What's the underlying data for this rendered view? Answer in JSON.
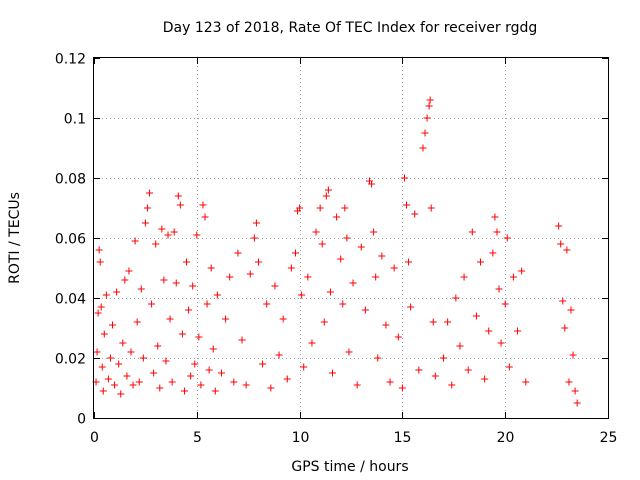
{
  "chart_data": {
    "type": "scatter",
    "title": "Day 123 of 2018, Rate Of TEC Index for receiver rgdg",
    "xlabel": "GPS time / hours",
    "ylabel": "ROTI / TECUs",
    "xlim": [
      0,
      25
    ],
    "ylim": [
      0,
      0.12
    ],
    "xticks": [
      0,
      5,
      10,
      15,
      20,
      25
    ],
    "yticks": [
      0,
      0.02,
      0.04,
      0.06,
      0.08,
      0.1,
      0.12
    ],
    "grid": true,
    "marker": "plus",
    "color": "#ff0000",
    "points": [
      [
        0.1,
        0.012
      ],
      [
        0.15,
        0.022
      ],
      [
        0.2,
        0.035
      ],
      [
        0.25,
        0.056
      ],
      [
        0.3,
        0.052
      ],
      [
        0.35,
        0.037
      ],
      [
        0.4,
        0.017
      ],
      [
        0.45,
        0.009
      ],
      [
        0.5,
        0.028
      ],
      [
        0.6,
        0.041
      ],
      [
        0.7,
        0.013
      ],
      [
        0.8,
        0.02
      ],
      [
        0.9,
        0.031
      ],
      [
        1.0,
        0.011
      ],
      [
        1.1,
        0.042
      ],
      [
        1.2,
        0.018
      ],
      [
        1.3,
        0.008
      ],
      [
        1.4,
        0.025
      ],
      [
        1.5,
        0.046
      ],
      [
        1.6,
        0.014
      ],
      [
        1.7,
        0.049
      ],
      [
        1.8,
        0.022
      ],
      [
        1.9,
        0.011
      ],
      [
        2.0,
        0.059
      ],
      [
        2.1,
        0.032
      ],
      [
        2.2,
        0.012
      ],
      [
        2.3,
        0.043
      ],
      [
        2.4,
        0.02
      ],
      [
        2.5,
        0.065
      ],
      [
        2.6,
        0.07
      ],
      [
        2.7,
        0.075
      ],
      [
        2.8,
        0.038
      ],
      [
        2.9,
        0.015
      ],
      [
        3.0,
        0.058
      ],
      [
        3.1,
        0.024
      ],
      [
        3.2,
        0.01
      ],
      [
        3.3,
        0.063
      ],
      [
        3.4,
        0.046
      ],
      [
        3.5,
        0.019
      ],
      [
        3.6,
        0.061
      ],
      [
        3.7,
        0.033
      ],
      [
        3.8,
        0.012
      ],
      [
        3.9,
        0.062
      ],
      [
        4.0,
        0.045
      ],
      [
        4.1,
        0.074
      ],
      [
        4.2,
        0.071
      ],
      [
        4.3,
        0.028
      ],
      [
        4.4,
        0.009
      ],
      [
        4.5,
        0.052
      ],
      [
        4.6,
        0.036
      ],
      [
        4.7,
        0.014
      ],
      [
        4.8,
        0.044
      ],
      [
        4.9,
        0.018
      ],
      [
        5.0,
        0.061
      ],
      [
        5.1,
        0.027
      ],
      [
        5.2,
        0.011
      ],
      [
        5.3,
        0.071
      ],
      [
        5.4,
        0.067
      ],
      [
        5.5,
        0.038
      ],
      [
        5.6,
        0.016
      ],
      [
        5.7,
        0.05
      ],
      [
        5.8,
        0.023
      ],
      [
        5.9,
        0.009
      ],
      [
        6.0,
        0.041
      ],
      [
        6.2,
        0.015
      ],
      [
        6.4,
        0.033
      ],
      [
        6.6,
        0.047
      ],
      [
        6.8,
        0.012
      ],
      [
        7.0,
        0.055
      ],
      [
        7.2,
        0.026
      ],
      [
        7.4,
        0.011
      ],
      [
        7.6,
        0.048
      ],
      [
        7.8,
        0.06
      ],
      [
        7.9,
        0.065
      ],
      [
        8.0,
        0.052
      ],
      [
        8.2,
        0.018
      ],
      [
        8.4,
        0.038
      ],
      [
        8.6,
        0.01
      ],
      [
        8.8,
        0.044
      ],
      [
        9.0,
        0.021
      ],
      [
        9.2,
        0.033
      ],
      [
        9.4,
        0.013
      ],
      [
        9.6,
        0.05
      ],
      [
        9.8,
        0.055
      ],
      [
        9.9,
        0.069
      ],
      [
        10.0,
        0.07
      ],
      [
        10.1,
        0.041
      ],
      [
        10.2,
        0.017
      ],
      [
        10.4,
        0.047
      ],
      [
        10.6,
        0.025
      ],
      [
        10.8,
        0.062
      ],
      [
        11.0,
        0.07
      ],
      [
        11.1,
        0.058
      ],
      [
        11.2,
        0.032
      ],
      [
        11.3,
        0.074
      ],
      [
        11.4,
        0.076
      ],
      [
        11.5,
        0.042
      ],
      [
        11.6,
        0.015
      ],
      [
        11.8,
        0.067
      ],
      [
        12.0,
        0.053
      ],
      [
        12.1,
        0.038
      ],
      [
        12.2,
        0.07
      ],
      [
        12.3,
        0.06
      ],
      [
        12.4,
        0.022
      ],
      [
        12.6,
        0.045
      ],
      [
        12.8,
        0.011
      ],
      [
        13.0,
        0.057
      ],
      [
        13.2,
        0.036
      ],
      [
        13.4,
        0.079
      ],
      [
        13.5,
        0.078
      ],
      [
        13.6,
        0.062
      ],
      [
        13.7,
        0.047
      ],
      [
        13.8,
        0.02
      ],
      [
        14.0,
        0.054
      ],
      [
        14.2,
        0.031
      ],
      [
        14.4,
        0.012
      ],
      [
        14.6,
        0.05
      ],
      [
        14.8,
        0.027
      ],
      [
        15.0,
        0.01
      ],
      [
        15.1,
        0.08
      ],
      [
        15.2,
        0.071
      ],
      [
        15.3,
        0.052
      ],
      [
        15.4,
        0.037
      ],
      [
        15.6,
        0.068
      ],
      [
        15.8,
        0.016
      ],
      [
        16.0,
        0.09
      ],
      [
        16.1,
        0.095
      ],
      [
        16.2,
        0.1
      ],
      [
        16.3,
        0.104
      ],
      [
        16.35,
        0.106
      ],
      [
        16.4,
        0.07
      ],
      [
        16.5,
        0.032
      ],
      [
        16.6,
        0.014
      ],
      [
        17.0,
        0.02
      ],
      [
        17.2,
        0.032
      ],
      [
        17.4,
        0.011
      ],
      [
        17.6,
        0.04
      ],
      [
        17.8,
        0.024
      ],
      [
        18.0,
        0.047
      ],
      [
        18.2,
        0.016
      ],
      [
        18.4,
        0.062
      ],
      [
        18.6,
        0.034
      ],
      [
        18.8,
        0.052
      ],
      [
        19.0,
        0.013
      ],
      [
        19.2,
        0.029
      ],
      [
        19.4,
        0.055
      ],
      [
        19.5,
        0.067
      ],
      [
        19.6,
        0.062
      ],
      [
        19.7,
        0.043
      ],
      [
        19.8,
        0.025
      ],
      [
        20.0,
        0.038
      ],
      [
        20.1,
        0.06
      ],
      [
        20.2,
        0.017
      ],
      [
        20.4,
        0.047
      ],
      [
        20.6,
        0.029
      ],
      [
        20.8,
        0.049
      ],
      [
        21.0,
        0.012
      ],
      [
        22.6,
        0.064
      ],
      [
        22.7,
        0.058
      ],
      [
        22.8,
        0.039
      ],
      [
        22.9,
        0.03
      ],
      [
        23.0,
        0.056
      ],
      [
        23.1,
        0.012
      ],
      [
        23.2,
        0.036
      ],
      [
        23.3,
        0.021
      ],
      [
        23.4,
        0.009
      ],
      [
        23.5,
        0.005
      ]
    ]
  }
}
